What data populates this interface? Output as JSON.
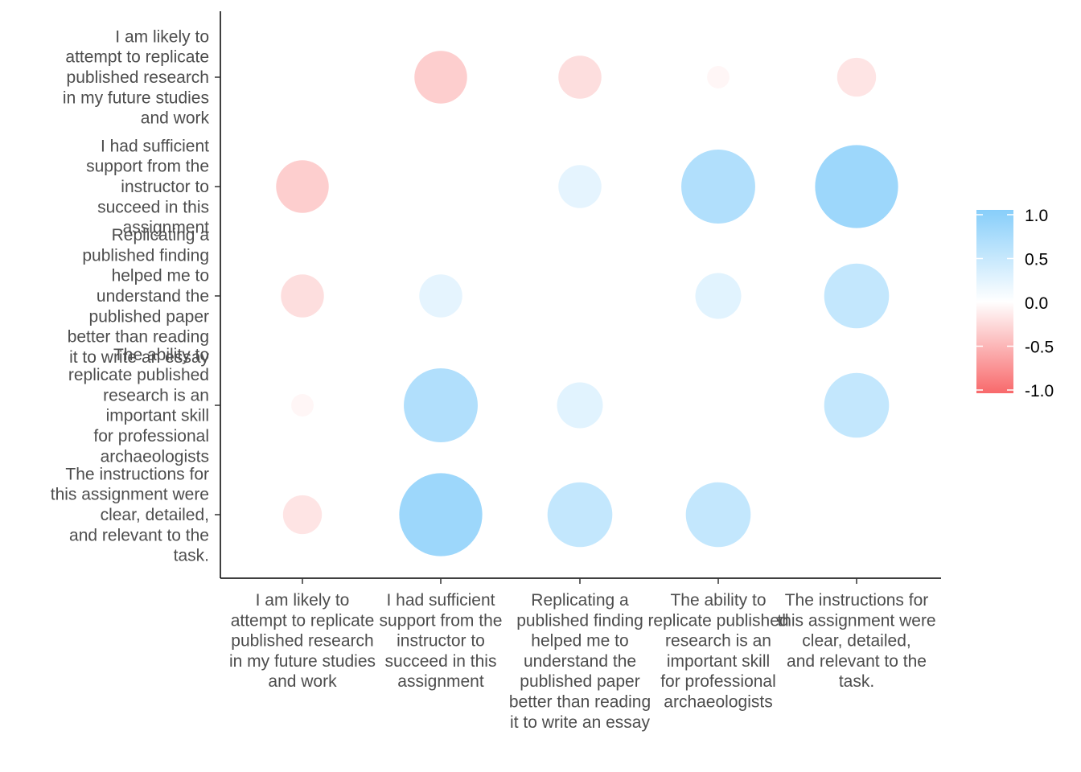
{
  "chart_data": {
    "type": "bubble-correlation-matrix",
    "title": "",
    "xlabel": "",
    "ylabel": "",
    "categories": [
      "I am likely to attempt to replicate published research in my future studies and work",
      "I had sufficient support from the instructor to succeed in this assignment",
      "Replicating a published finding helped me to understand the published paper better than reading it to write an essay",
      "The ability to replicate published research is an important skill for professional archaeologists",
      "The instructions for this assignment were clear, detailed, and relevant to the task."
    ],
    "x_tick_lines": [
      [
        "I am likely to",
        "attempt to replicate",
        "published research",
        "in my future studies",
        "and work"
      ],
      [
        "I had sufficient",
        "support from the",
        "instructor to",
        "succeed in this",
        "assignment"
      ],
      [
        "Replicating a",
        "published finding",
        "helped me to",
        "understand the",
        "published paper",
        "better than reading",
        "it to write an essay"
      ],
      [
        "The ability to",
        "replicate published",
        "research is an",
        "important skill",
        "for professional",
        "archaeologists"
      ],
      [
        "The instructions for",
        "this assignment were",
        "clear, detailed,",
        "and relevant to the",
        "task."
      ]
    ],
    "y_tick_lines": [
      [
        "I am likely to",
        "attempt to replicate",
        "published research",
        "in my future studies",
        "and work"
      ],
      [
        "I had sufficient",
        "support from the",
        "instructor to",
        "succeed in this",
        "assignment"
      ],
      [
        "Replicating a",
        "published finding",
        "helped me to",
        "understand the",
        "published paper",
        "better than reading",
        "it to write an essay"
      ],
      [
        "The ability to",
        "replicate published",
        "research is an",
        "important skill",
        "for professional",
        "archaeologists"
      ],
      [
        "The instructions for",
        "this assignment were",
        "clear, detailed,",
        "and relevant to the",
        "task."
      ]
    ],
    "correlations": [
      [
        null,
        -0.33,
        -0.22,
        -0.06,
        -0.18
      ],
      [
        -0.33,
        null,
        0.22,
        0.65,
        0.82
      ],
      [
        -0.22,
        0.22,
        null,
        0.25,
        0.5
      ],
      [
        -0.06,
        0.65,
        0.25,
        null,
        0.5
      ],
      [
        -0.18,
        0.82,
        0.5,
        0.5,
        null
      ]
    ],
    "color_scale": {
      "low": "#F8696B",
      "mid": "#FFFFFF",
      "high": "#87CEFA",
      "limits": [
        -1,
        1
      ]
    },
    "legend": {
      "position": "right",
      "ticks": [
        1.0,
        0.5,
        0.0,
        -0.5,
        -1.0
      ],
      "tick_labels": [
        "1.0",
        "0.5",
        "0.0",
        "-0.5",
        "-1.0"
      ]
    },
    "grid": false
  }
}
